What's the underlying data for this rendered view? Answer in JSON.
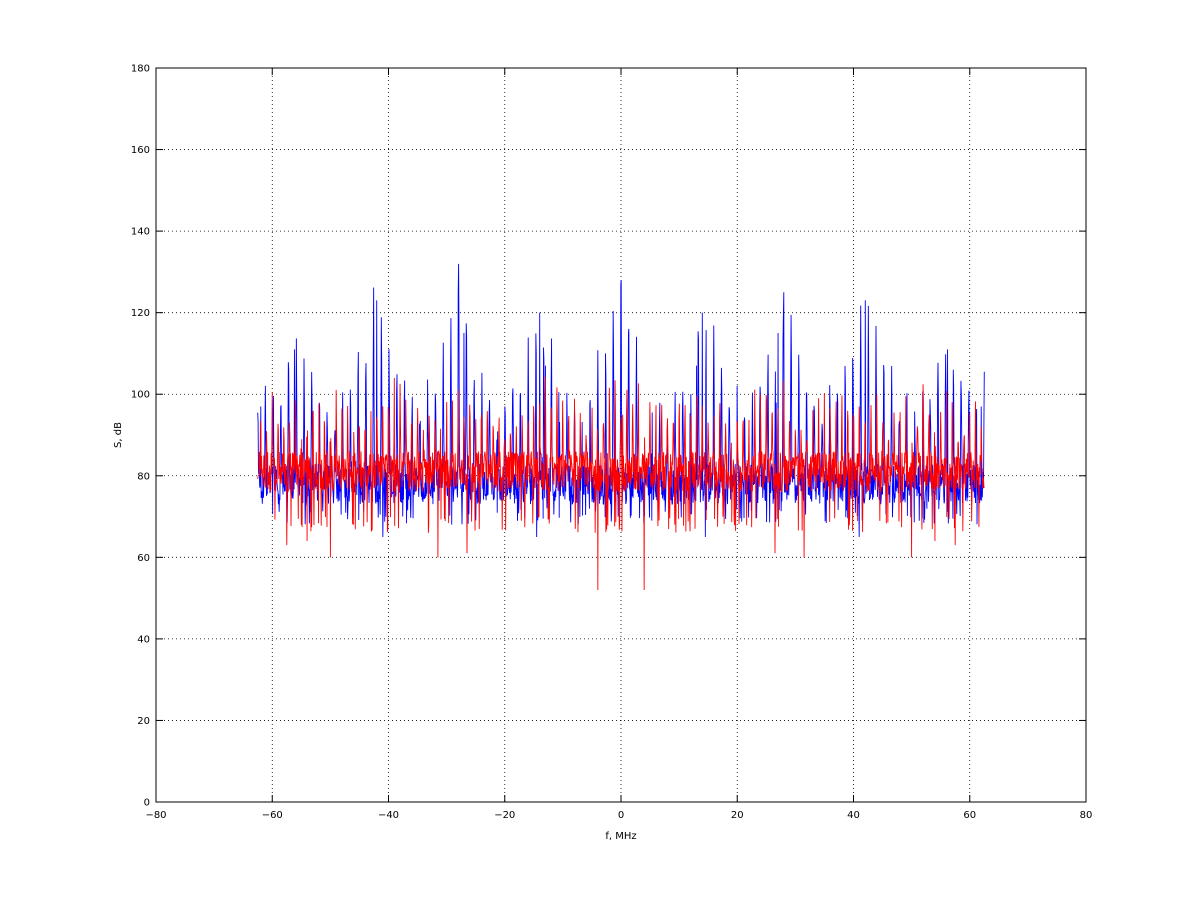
{
  "chart_data": {
    "type": "line",
    "xlabel": "f, MHz",
    "ylabel": "S, dB",
    "xlim": [
      -80,
      80
    ],
    "ylim": [
      0,
      180
    ],
    "xticks": [
      -80,
      -60,
      -40,
      -20,
      0,
      20,
      40,
      60,
      80
    ],
    "yticks": [
      0,
      20,
      40,
      60,
      80,
      100,
      120,
      140,
      160,
      180
    ],
    "xtick_labels": [
      "−80",
      "−60",
      "−40",
      "−20",
      "0",
      "20",
      "40",
      "60",
      "80"
    ],
    "ytick_labels": [
      "0",
      "20",
      "40",
      "60",
      "80",
      "100",
      "120",
      "140",
      "160",
      "180"
    ],
    "grid": true,
    "grid_style": "dotted",
    "series": [
      {
        "color": "#0000ff",
        "x_range": [
          -62.5,
          62.5
        ],
        "baseline": 78,
        "floor": 72,
        "harmonic_spacing": 1.33,
        "peaks": [
          {
            "x": -62.0,
            "y": 97
          },
          {
            "x": -56.2,
            "y": 111
          },
          {
            "x": -42.0,
            "y": 123
          },
          {
            "x": -41.0,
            "y": 114
          },
          {
            "x": -28.0,
            "y": 125
          },
          {
            "x": -27.0,
            "y": 115
          },
          {
            "x": -14.0,
            "y": 120
          },
          {
            "x": -13.0,
            "y": 107
          },
          {
            "x": 0.0,
            "y": 128
          },
          {
            "x": 13.0,
            "y": 107
          },
          {
            "x": 14.0,
            "y": 120
          },
          {
            "x": 27.0,
            "y": 115
          },
          {
            "x": 28.0,
            "y": 125
          },
          {
            "x": 41.0,
            "y": 114
          },
          {
            "x": 42.0,
            "y": 123
          },
          {
            "x": 56.2,
            "y": 111
          },
          {
            "x": 62.0,
            "y": 97
          }
        ],
        "dips": [
          {
            "x": -41.0,
            "y": 65
          },
          {
            "x": -14.5,
            "y": 65
          },
          {
            "x": 14.5,
            "y": 65
          },
          {
            "x": 41.0,
            "y": 65
          }
        ]
      },
      {
        "color": "#ff0000",
        "x_range": [
          -62.5,
          62.5
        ],
        "baseline": 81,
        "floor": 70,
        "harmonic_spacing": 1.0,
        "peaks": [
          {
            "x": -53.0,
            "y": 95
          },
          {
            "x": -40.0,
            "y": 95
          },
          {
            "x": -26.0,
            "y": 95
          },
          {
            "x": -12.0,
            "y": 95
          },
          {
            "x": 0.3,
            "y": 95
          },
          {
            "x": 12.0,
            "y": 95
          },
          {
            "x": 26.0,
            "y": 95
          },
          {
            "x": 40.0,
            "y": 95
          },
          {
            "x": 53.0,
            "y": 95
          }
        ],
        "dips": [
          {
            "x": -57.5,
            "y": 63
          },
          {
            "x": -54.0,
            "y": 64
          },
          {
            "x": -50.0,
            "y": 60
          },
          {
            "x": -31.5,
            "y": 60
          },
          {
            "x": -26.5,
            "y": 61
          },
          {
            "x": -4.0,
            "y": 52
          },
          {
            "x": 4.0,
            "y": 52
          },
          {
            "x": 26.5,
            "y": 61
          },
          {
            "x": 31.5,
            "y": 60
          },
          {
            "x": 50.0,
            "y": 60
          },
          {
            "x": 54.0,
            "y": 64
          },
          {
            "x": 57.5,
            "y": 63
          }
        ]
      }
    ]
  }
}
